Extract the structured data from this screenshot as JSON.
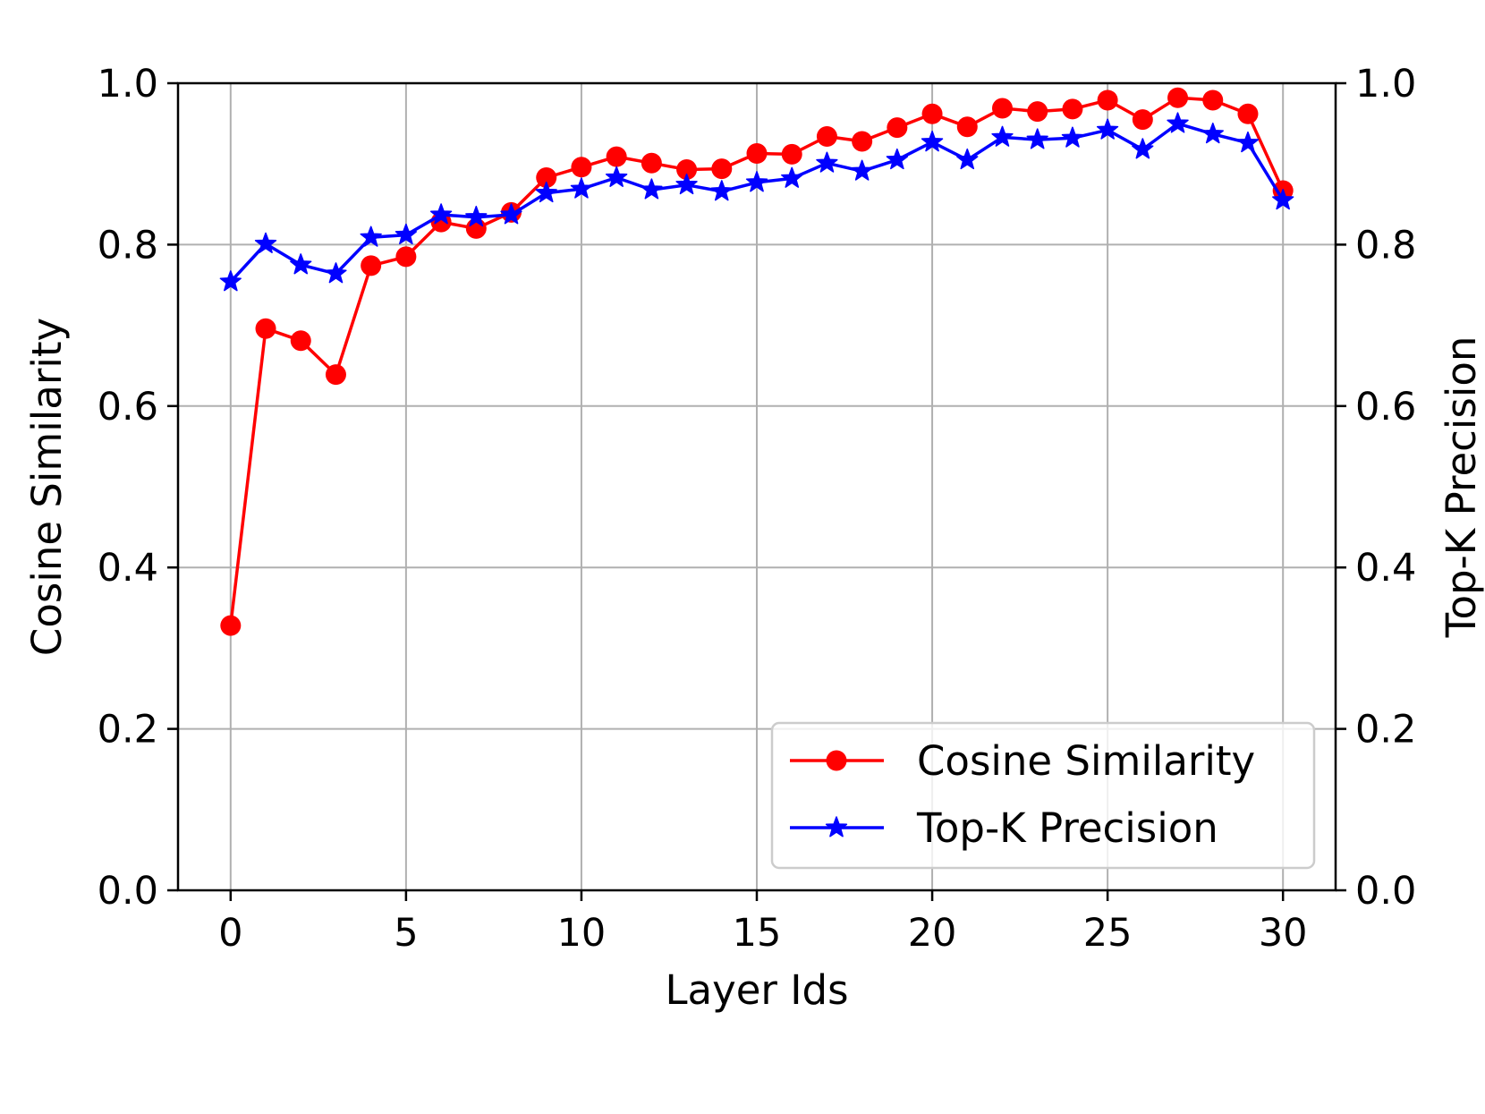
{
  "chart_data": {
    "type": "line",
    "xlabel": "Layer Ids",
    "ylabel": "Cosine Similarity",
    "ylabel_right": "Top-K Precision",
    "xlim": [
      -1.5,
      31.5
    ],
    "ylim": [
      0.0,
      1.0
    ],
    "ylim_right": [
      0.0,
      1.0
    ],
    "x_ticks": [
      0,
      5,
      10,
      15,
      20,
      25,
      30
    ],
    "x_tick_labels": [
      "0",
      "5",
      "10",
      "15",
      "20",
      "25",
      "30"
    ],
    "y_ticks": [
      0.0,
      0.2,
      0.4,
      0.6,
      0.8,
      1.0
    ],
    "y_tick_labels": [
      "0.0",
      "0.2",
      "0.4",
      "0.6",
      "0.8",
      "1.0"
    ],
    "y_right_tick_labels": [
      "0.0",
      "0.2",
      "0.4",
      "0.6",
      "0.8",
      "1.0"
    ],
    "grid": true,
    "legend_position": "lower-right",
    "x": [
      0,
      1,
      2,
      3,
      4,
      5,
      6,
      7,
      8,
      9,
      10,
      11,
      12,
      13,
      14,
      15,
      16,
      17,
      18,
      19,
      20,
      21,
      22,
      23,
      24,
      25,
      26,
      27,
      28,
      29,
      30
    ],
    "series": [
      {
        "name": "Cosine Similarity",
        "color": "#ff0000",
        "marker": "circle",
        "axis": "left",
        "values": [
          0.328,
          0.696,
          0.681,
          0.639,
          0.774,
          0.785,
          0.828,
          0.82,
          0.84,
          0.883,
          0.896,
          0.909,
          0.901,
          0.893,
          0.894,
          0.913,
          0.912,
          0.934,
          0.928,
          0.945,
          0.962,
          0.946,
          0.969,
          0.965,
          0.968,
          0.979,
          0.955,
          0.982,
          0.979,
          0.962,
          0.867
        ]
      },
      {
        "name": "Top-K Precision",
        "color": "#0000ff",
        "marker": "star",
        "axis": "right",
        "values": [
          0.754,
          0.801,
          0.775,
          0.764,
          0.809,
          0.812,
          0.837,
          0.834,
          0.837,
          0.864,
          0.869,
          0.883,
          0.868,
          0.874,
          0.866,
          0.877,
          0.882,
          0.901,
          0.891,
          0.905,
          0.927,
          0.905,
          0.933,
          0.93,
          0.932,
          0.942,
          0.918,
          0.95,
          0.937,
          0.926,
          0.855
        ]
      }
    ]
  }
}
